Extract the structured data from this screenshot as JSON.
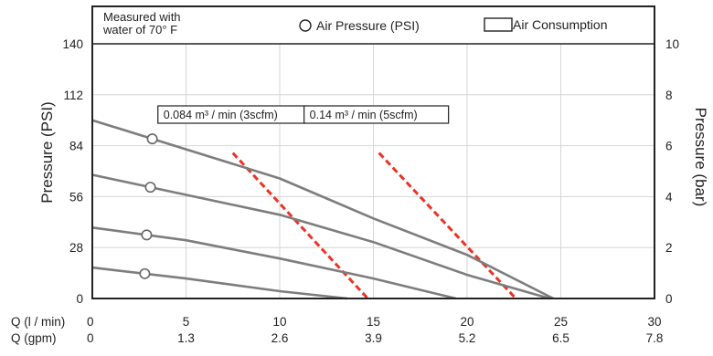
{
  "chart_data": {
    "type": "line",
    "note_lines": [
      "Measured with",
      "water of 70° F"
    ],
    "legend": {
      "pressure_label": "Air Pressure (PSI)",
      "consumption_label": "Air Consumption"
    },
    "y_left": {
      "label": "Pressure (PSI)",
      "min": 0,
      "max": 140,
      "ticks": [
        0,
        28,
        56,
        84,
        112,
        140
      ]
    },
    "y_right": {
      "label": "Pressure (bar)",
      "min": 0,
      "max": 10,
      "ticks": [
        0,
        2,
        4,
        6,
        8,
        10
      ]
    },
    "x_primary": {
      "label": "Q (l / min)",
      "min": 0,
      "max": 30,
      "ticks": [
        0,
        5,
        10,
        15,
        20,
        25,
        30
      ]
    },
    "x_secondary": {
      "label": "Q (gpm)",
      "tick_labels": [
        "0",
        "1.3",
        "2.6",
        "3.9",
        "5.2",
        "6.5",
        "7.8"
      ]
    },
    "grid": true,
    "series": [
      {
        "points": [
          [
            0,
            98
          ],
          [
            10,
            66
          ],
          [
            15,
            44
          ],
          [
            20,
            24
          ],
          [
            24.6,
            0
          ]
        ],
        "marker_x": 3.2
      },
      {
        "points": [
          [
            0,
            68
          ],
          [
            10,
            46
          ],
          [
            15,
            31
          ],
          [
            20,
            13
          ],
          [
            24.4,
            0
          ]
        ],
        "marker_x": 3.1
      },
      {
        "points": [
          [
            0,
            39
          ],
          [
            5,
            32
          ],
          [
            10,
            22
          ],
          [
            15,
            11
          ],
          [
            19.4,
            0
          ]
        ],
        "marker_x": 2.9
      },
      {
        "points": [
          [
            0,
            17
          ],
          [
            5,
            11
          ],
          [
            10,
            4
          ],
          [
            13.6,
            0
          ]
        ],
        "marker_x": 2.8
      }
    ],
    "consumption_lines": [
      {
        "label": "0.084 m³ / min (3scfm)",
        "from": [
          7.5,
          80
        ],
        "to": [
          14.7,
          0
        ]
      },
      {
        "label": "0.14 m³ / min (5scfm)",
        "from": [
          15.3,
          80
        ],
        "to": [
          22.6,
          0
        ]
      }
    ]
  }
}
